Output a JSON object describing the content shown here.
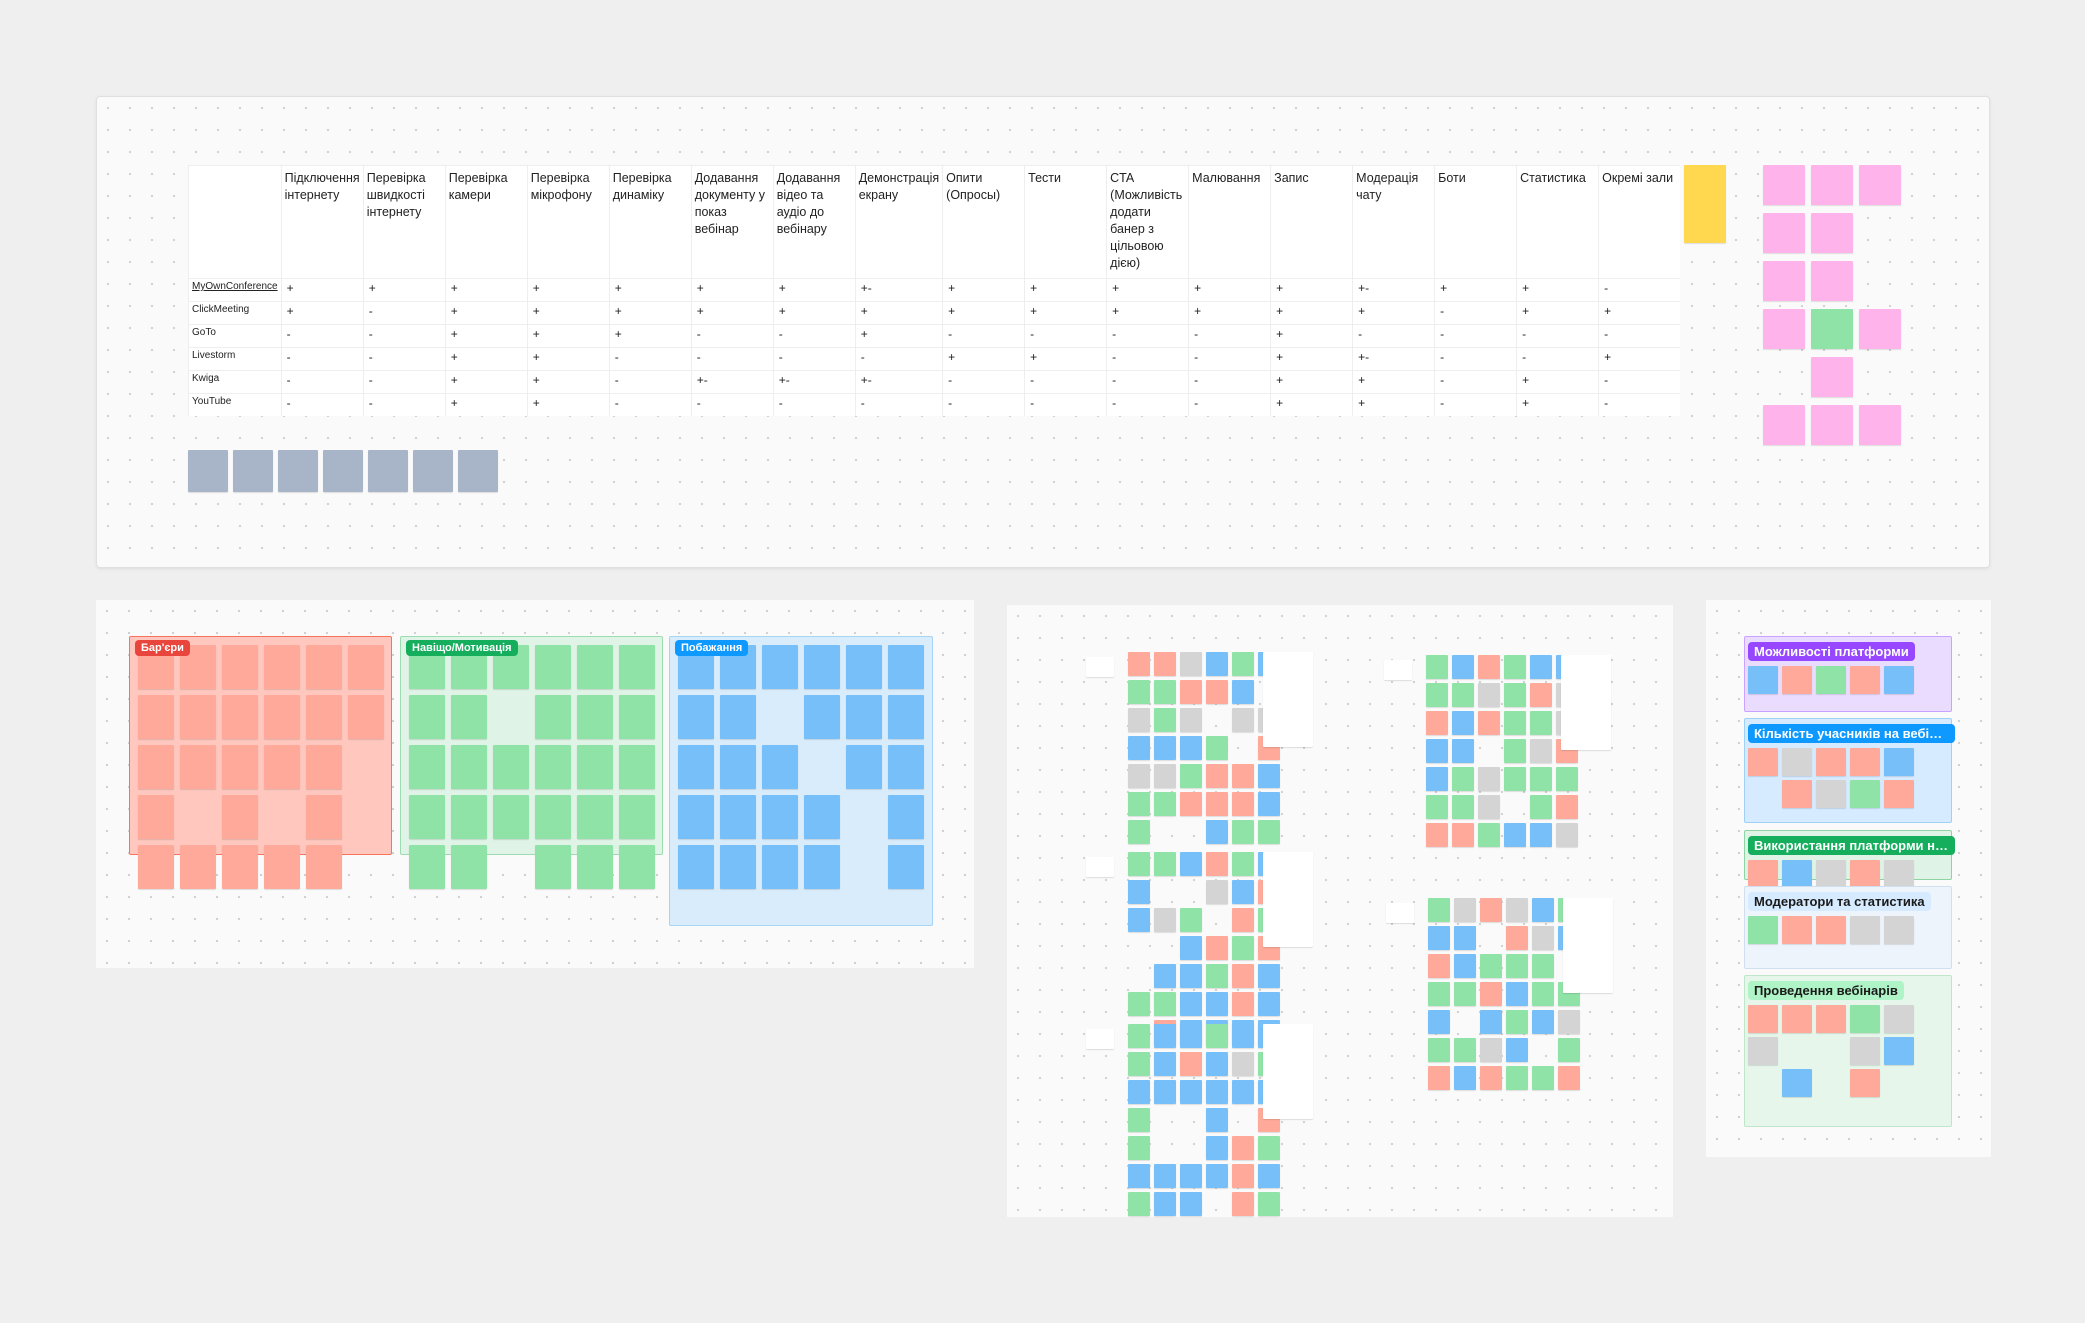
{
  "table": {
    "headers": [
      "Підключення інтернету",
      "Перевірка швидкості інтернету",
      "Перевірка камери",
      "Перевірка мікрофону",
      "Перевірка динаміку",
      "Додавання документу у показ вебінар",
      "Додавання відео та аудіо до вебінару",
      "Демонстрація екрану",
      "Опити (Опросы)",
      "Тести",
      "CTA (Можливість додати банер з цільовою дією)",
      "Малювання",
      "Запис",
      "Модерація чату",
      "Боти",
      "Статистика",
      "Окремі зали"
    ],
    "rows": [
      [
        "MyOwnConference",
        "+",
        "+",
        "+",
        "+",
        "+",
        "+",
        "+",
        "+-",
        "+",
        "+",
        "+",
        "+",
        "+",
        "+-",
        "+",
        "+",
        "-"
      ],
      [
        "ClickMeeting",
        "+",
        "-",
        "+",
        "+",
        "+",
        "+",
        "+",
        "+",
        "+",
        "+",
        "+",
        "+",
        "+",
        "+",
        "-",
        "+",
        "+"
      ],
      [
        "GoTo",
        "-",
        "-",
        "+",
        "+",
        "+",
        "-",
        "-",
        "+",
        "-",
        "-",
        "-",
        "-",
        "+",
        "-",
        "-",
        "-",
        "-"
      ],
      [
        "Livestorm",
        "-",
        "-",
        "+",
        "+",
        "-",
        "-",
        "-",
        "-",
        "+",
        "+",
        "-",
        "-",
        "+",
        "+-",
        "-",
        "-",
        "+"
      ],
      [
        "Kwiga",
        "-",
        "-",
        "+",
        "+",
        "-",
        "+-",
        "+-",
        "+-",
        "-",
        "-",
        "-",
        "-",
        "+",
        "+",
        "-",
        "+",
        "-"
      ],
      [
        "YouTube",
        "-",
        "-",
        "+",
        "+",
        "-",
        "-",
        "-",
        "-",
        "-",
        "-",
        "-",
        "-",
        "+",
        "+",
        "-",
        "+",
        "-"
      ]
    ]
  },
  "sections": [
    "Бар'єри",
    "Навіщо/Мотивація",
    "Побажання"
  ],
  "clusters": [
    "Можливості платформи",
    "Кількість учасників на вебінарі",
    "Використання платформи на м...",
    "Модератори та статистика",
    "Проведення вебінарів"
  ]
}
